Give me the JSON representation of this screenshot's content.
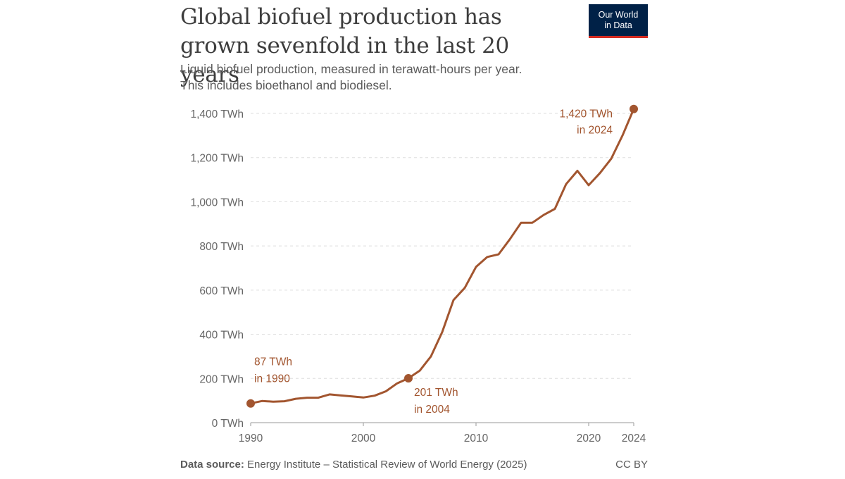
{
  "title": "Global biofuel production has grown sevenfold in the last 20 years",
  "subtitle_line1": "Liquid biofuel production, measured in terawatt-hours per year.",
  "subtitle_line2": "This includes bioethanol and biodiesel.",
  "logo": {
    "line1": "Our World",
    "line2": "in Data"
  },
  "footer": {
    "source_label": "Data source:",
    "source_text": "Energy Institute – Statistical Review of World Energy (2025)",
    "license": "CC BY"
  },
  "colors": {
    "series": "#a2552f",
    "logo_bg": "#002147",
    "logo_accent": "#d42b21"
  },
  "chart_data": {
    "type": "line",
    "xlim": [
      1990,
      2024
    ],
    "ylim": [
      0,
      1400
    ],
    "y_ticks": [
      0,
      200,
      400,
      600,
      800,
      1000,
      1200,
      1400
    ],
    "y_tick_labels": [
      "0 TWh",
      "200 TWh",
      "400 TWh",
      "600 TWh",
      "800 TWh",
      "1,000 TWh",
      "1,200 TWh",
      "1,400 TWh"
    ],
    "x_ticks": [
      1990,
      2000,
      2010,
      2020,
      2024
    ],
    "x_tick_labels": [
      "1990",
      "2000",
      "2010",
      "2020",
      "2024"
    ],
    "grid": true,
    "series": [
      {
        "x": [
          1990,
          1991,
          1992,
          1993,
          1994,
          1995,
          1996,
          1997,
          1998,
          1999,
          2000,
          2001,
          2002,
          2003,
          2004,
          2005,
          2006,
          2007,
          2008,
          2009,
          2010,
          2011,
          2012,
          2013,
          2014,
          2015,
          2016,
          2017,
          2018,
          2019,
          2020,
          2021,
          2022,
          2023,
          2024
        ],
        "values": [
          87,
          98,
          95,
          97,
          108,
          113,
          113,
          128,
          123,
          119,
          114,
          122,
          142,
          178,
          201,
          235,
          300,
          410,
          555,
          610,
          705,
          750,
          762,
          830,
          905,
          905,
          940,
          968,
          1080,
          1140,
          1075,
          1130,
          1195,
          1300,
          1420
        ]
      }
    ],
    "annotations": [
      {
        "x": 1990,
        "y": 87,
        "line1": "87 TWh",
        "line2": "in 1990"
      },
      {
        "x": 2004,
        "y": 201,
        "line1": "201 TWh",
        "line2": "in 2004"
      },
      {
        "x": 2024,
        "y": 1420,
        "line1": "1,420 TWh",
        "line2": "in 2024"
      }
    ]
  }
}
